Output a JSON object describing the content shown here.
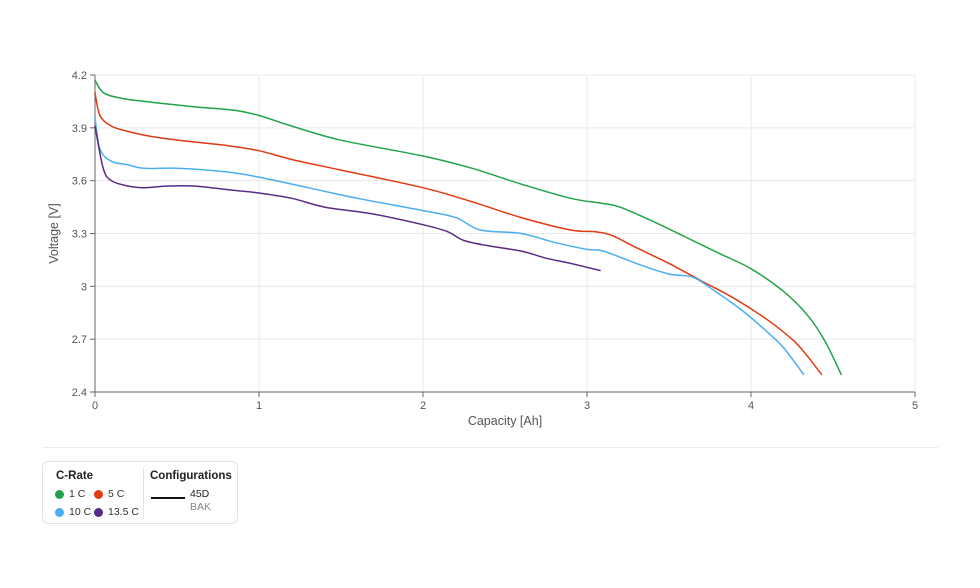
{
  "chart_data": {
    "type": "line",
    "xlabel": "Capacity [Ah]",
    "ylabel": "Voltage [V]",
    "xlim": [
      0,
      5
    ],
    "ylim": [
      2.4,
      4.2
    ],
    "xticks": [
      "0",
      "1",
      "2",
      "3",
      "4",
      "5"
    ],
    "yticks": [
      "2.4",
      "2.7",
      "3",
      "3.3",
      "3.6",
      "3.9",
      "4.2"
    ],
    "grid": true,
    "series": [
      {
        "name": "1 C",
        "color": "#22a34a",
        "x": [
          0,
          0.05,
          0.15,
          0.3,
          0.6,
          0.85,
          1.0,
          1.2,
          1.5,
          2.0,
          2.3,
          2.6,
          2.9,
          3.1,
          3.2,
          3.4,
          3.6,
          3.8,
          4.0,
          4.2,
          4.35,
          4.45,
          4.55
        ],
        "y": [
          4.17,
          4.1,
          4.07,
          4.05,
          4.02,
          4.0,
          3.97,
          3.91,
          3.83,
          3.74,
          3.67,
          3.58,
          3.5,
          3.47,
          3.45,
          3.37,
          3.28,
          3.19,
          3.1,
          2.97,
          2.83,
          2.69,
          2.5
        ]
      },
      {
        "name": "5 C",
        "color": "#e23a12",
        "x": [
          0,
          0.03,
          0.1,
          0.2,
          0.35,
          0.6,
          0.8,
          1.0,
          1.2,
          1.5,
          2.0,
          2.3,
          2.6,
          2.9,
          3.05,
          3.15,
          3.3,
          3.5,
          3.7,
          3.9,
          4.1,
          4.25,
          4.33,
          4.43
        ],
        "y": [
          4.1,
          3.97,
          3.91,
          3.88,
          3.85,
          3.82,
          3.8,
          3.77,
          3.72,
          3.66,
          3.56,
          3.48,
          3.39,
          3.32,
          3.31,
          3.29,
          3.22,
          3.13,
          3.03,
          2.93,
          2.81,
          2.7,
          2.62,
          2.5
        ]
      },
      {
        "name": "10 C",
        "color": "#4baef0",
        "x": [
          0,
          0.03,
          0.1,
          0.2,
          0.3,
          0.5,
          0.8,
          1.0,
          1.3,
          1.6,
          2.0,
          2.2,
          2.35,
          2.6,
          2.8,
          3.0,
          3.1,
          3.3,
          3.5,
          3.65,
          3.8,
          3.95,
          4.1,
          4.2,
          4.32
        ],
        "y": [
          3.96,
          3.78,
          3.71,
          3.69,
          3.67,
          3.67,
          3.65,
          3.62,
          3.56,
          3.5,
          3.43,
          3.39,
          3.32,
          3.3,
          3.25,
          3.21,
          3.2,
          3.13,
          3.07,
          3.05,
          2.96,
          2.86,
          2.74,
          2.65,
          2.5
        ]
      },
      {
        "name": "13.5 C",
        "color": "#5b2a86",
        "x": [
          0,
          0.05,
          0.1,
          0.2,
          0.3,
          0.45,
          0.6,
          0.8,
          1.0,
          1.2,
          1.4,
          1.7,
          2.0,
          2.15,
          2.25,
          2.4,
          2.6,
          2.75,
          2.9,
          3.08
        ],
        "y": [
          3.91,
          3.67,
          3.6,
          3.57,
          3.56,
          3.57,
          3.57,
          3.55,
          3.53,
          3.5,
          3.45,
          3.41,
          3.35,
          3.31,
          3.26,
          3.23,
          3.2,
          3.16,
          3.13,
          3.09
        ]
      }
    ]
  },
  "legend": {
    "crate_title": "C-Rate",
    "config_title": "Configurations",
    "config_name": "45D",
    "config_sub": "BAK"
  }
}
